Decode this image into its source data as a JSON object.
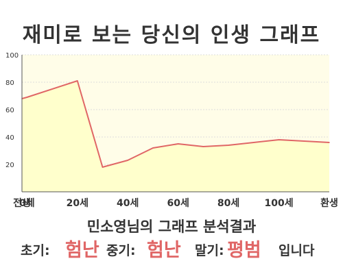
{
  "title": "재미로 보는 당신의 인생 그래프",
  "chart_data": {
    "type": "area",
    "x": [
      -2,
      0,
      20,
      30,
      40,
      50,
      60,
      70,
      80,
      90,
      100,
      110,
      120
    ],
    "values": [
      68,
      69,
      81,
      18,
      23,
      32,
      35,
      33,
      34,
      36,
      38,
      37,
      36
    ],
    "ylim": [
      0,
      100
    ],
    "yticks": [
      "20",
      "40",
      "60",
      "80",
      "100"
    ],
    "ytick_values": [
      20,
      40,
      60,
      80,
      100
    ],
    "xtick_labels": [
      "전생",
      "0세",
      "20세",
      "40세",
      "60세",
      "80세",
      "100세",
      "환생"
    ],
    "xtick_positions": [
      -2,
      0,
      20,
      40,
      60,
      80,
      100,
      120
    ],
    "grid": true,
    "colors": {
      "line": "#e06666",
      "fill": "#ffffcc",
      "plot_bg": "#fffde8"
    }
  },
  "summary": {
    "title": "민소영님의 그래프 분석결과",
    "early_label": "초기:",
    "early_value": "험난",
    "middle_label": "중기:",
    "middle_value": "험난",
    "late_label": "말기:",
    "late_value": "평범",
    "ending": "입니다"
  }
}
